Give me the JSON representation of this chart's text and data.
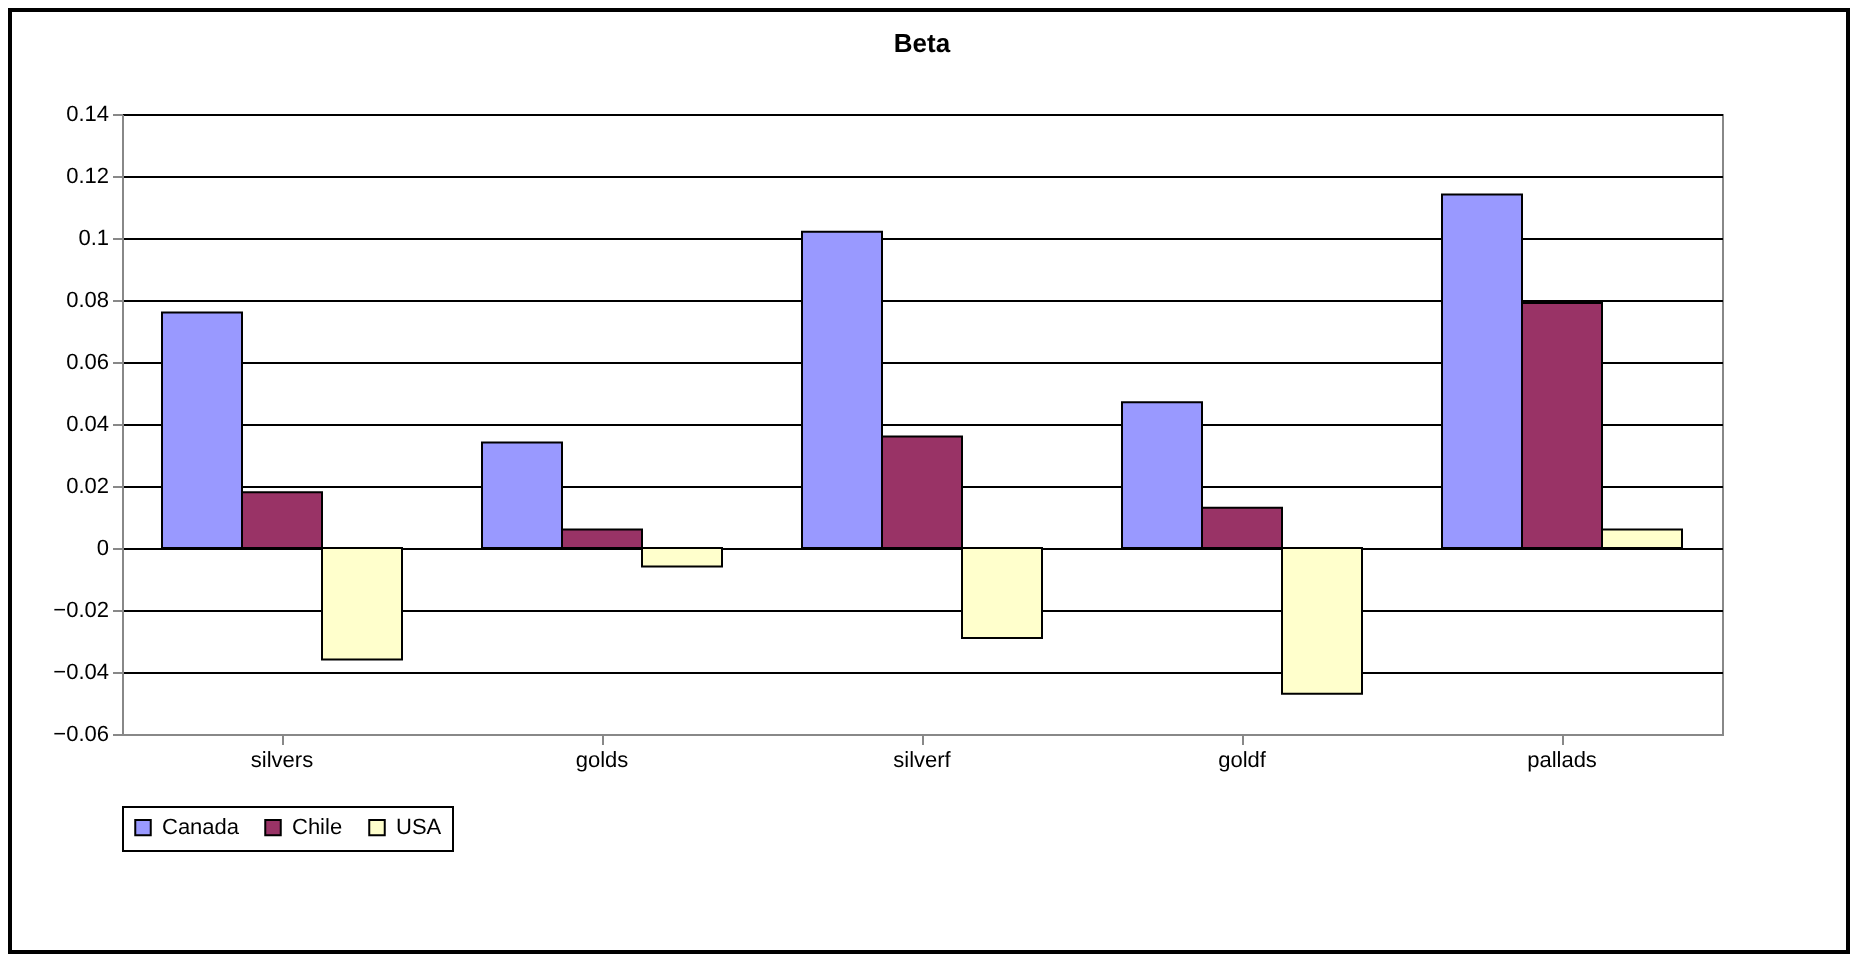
{
  "chart_data": {
    "type": "bar",
    "title": "Beta",
    "categories": [
      "silvers",
      "golds",
      "silverf",
      "goldf",
      "pallads"
    ],
    "series": [
      {
        "name": "Canada",
        "color": "#9999ff",
        "values": [
          0.076,
          0.034,
          0.102,
          0.047,
          0.114
        ]
      },
      {
        "name": "Chile",
        "color": "#993366",
        "values": [
          0.018,
          0.006,
          0.036,
          0.013,
          0.079
        ]
      },
      {
        "name": "USA",
        "color": "#ffffcc",
        "values": [
          -0.036,
          -0.006,
          -0.029,
          -0.047,
          0.006
        ]
      }
    ],
    "ylim": [
      -0.06,
      0.14
    ],
    "yticks": [
      -0.06,
      -0.04,
      -0.02,
      0,
      0.02,
      0.04,
      0.06,
      0.08,
      0.1,
      0.12,
      0.14
    ],
    "grid": "y",
    "legend": "bottom"
  }
}
